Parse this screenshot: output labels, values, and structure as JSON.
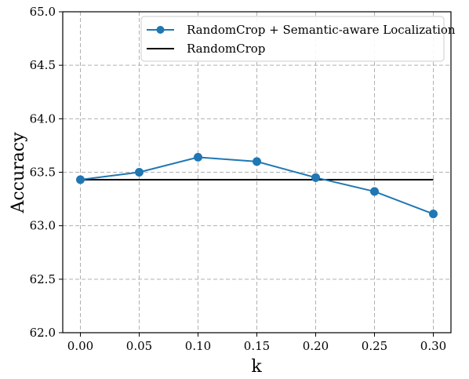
{
  "chart_data": {
    "type": "line",
    "xlabel": "k",
    "ylabel": "Accuracy",
    "xlim": [
      -0.015,
      0.315
    ],
    "ylim": [
      62.0,
      65.0
    ],
    "x_ticks": [
      "0.00",
      "0.05",
      "0.10",
      "0.15",
      "0.20",
      "0.25",
      "0.30"
    ],
    "y_ticks": [
      "62.0",
      "62.5",
      "63.0",
      "63.5",
      "64.0",
      "64.5",
      "65.0"
    ],
    "x_tick_values": [
      0.0,
      0.05,
      0.1,
      0.15,
      0.2,
      0.25,
      0.3
    ],
    "y_tick_values": [
      62.0,
      62.5,
      63.0,
      63.5,
      64.0,
      64.5,
      65.0
    ],
    "grid": true,
    "legend_position": "top-right",
    "x": [
      0.0,
      0.05,
      0.1,
      0.15,
      0.2,
      0.25,
      0.3
    ],
    "series": [
      {
        "name": "RandomCrop + Semantic-aware Localization",
        "color": "#1f77b4",
        "marker": "circle",
        "values": [
          63.43,
          63.5,
          63.64,
          63.6,
          63.45,
          63.32,
          63.11
        ]
      },
      {
        "name": "RandomCrop",
        "color": "#000000",
        "marker": "none",
        "values": [
          63.43,
          63.43,
          63.43,
          63.43,
          63.43,
          63.43,
          63.43
        ]
      }
    ]
  }
}
